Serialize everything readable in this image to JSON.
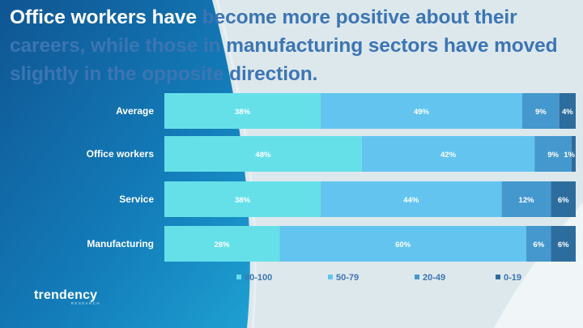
{
  "title": {
    "white_part": "Office workers have ",
    "blue_part": "become more positive about their careers, while those in manufacturing sectors have moved slightly in the opposite direction."
  },
  "chart_data": {
    "type": "bar",
    "orientation": "horizontal",
    "stacked": true,
    "categories": [
      "Average",
      "Office workers",
      "Service",
      "Manufacturing"
    ],
    "series": [
      {
        "name": "80-100",
        "values": [
          38,
          48,
          38,
          28
        ],
        "color": "#66e0e8"
      },
      {
        "name": "50-79",
        "values": [
          49,
          42,
          44,
          60
        ],
        "color": "#63c5ef"
      },
      {
        "name": "20-49",
        "values": [
          9,
          9,
          12,
          6
        ],
        "color": "#4498cd"
      },
      {
        "name": "0-19",
        "values": [
          4,
          1,
          6,
          6
        ],
        "color": "#2d6d9d"
      }
    ],
    "value_suffix": "%",
    "legend": "bottom"
  },
  "logo": {
    "word": "trendency",
    "sub": "RESEARCH"
  },
  "colors": {
    "panel_dark": "#0f5592",
    "panel_light": "#1ea0d2",
    "page": "#dde8ed",
    "title_blue": "#3c75b3"
  }
}
